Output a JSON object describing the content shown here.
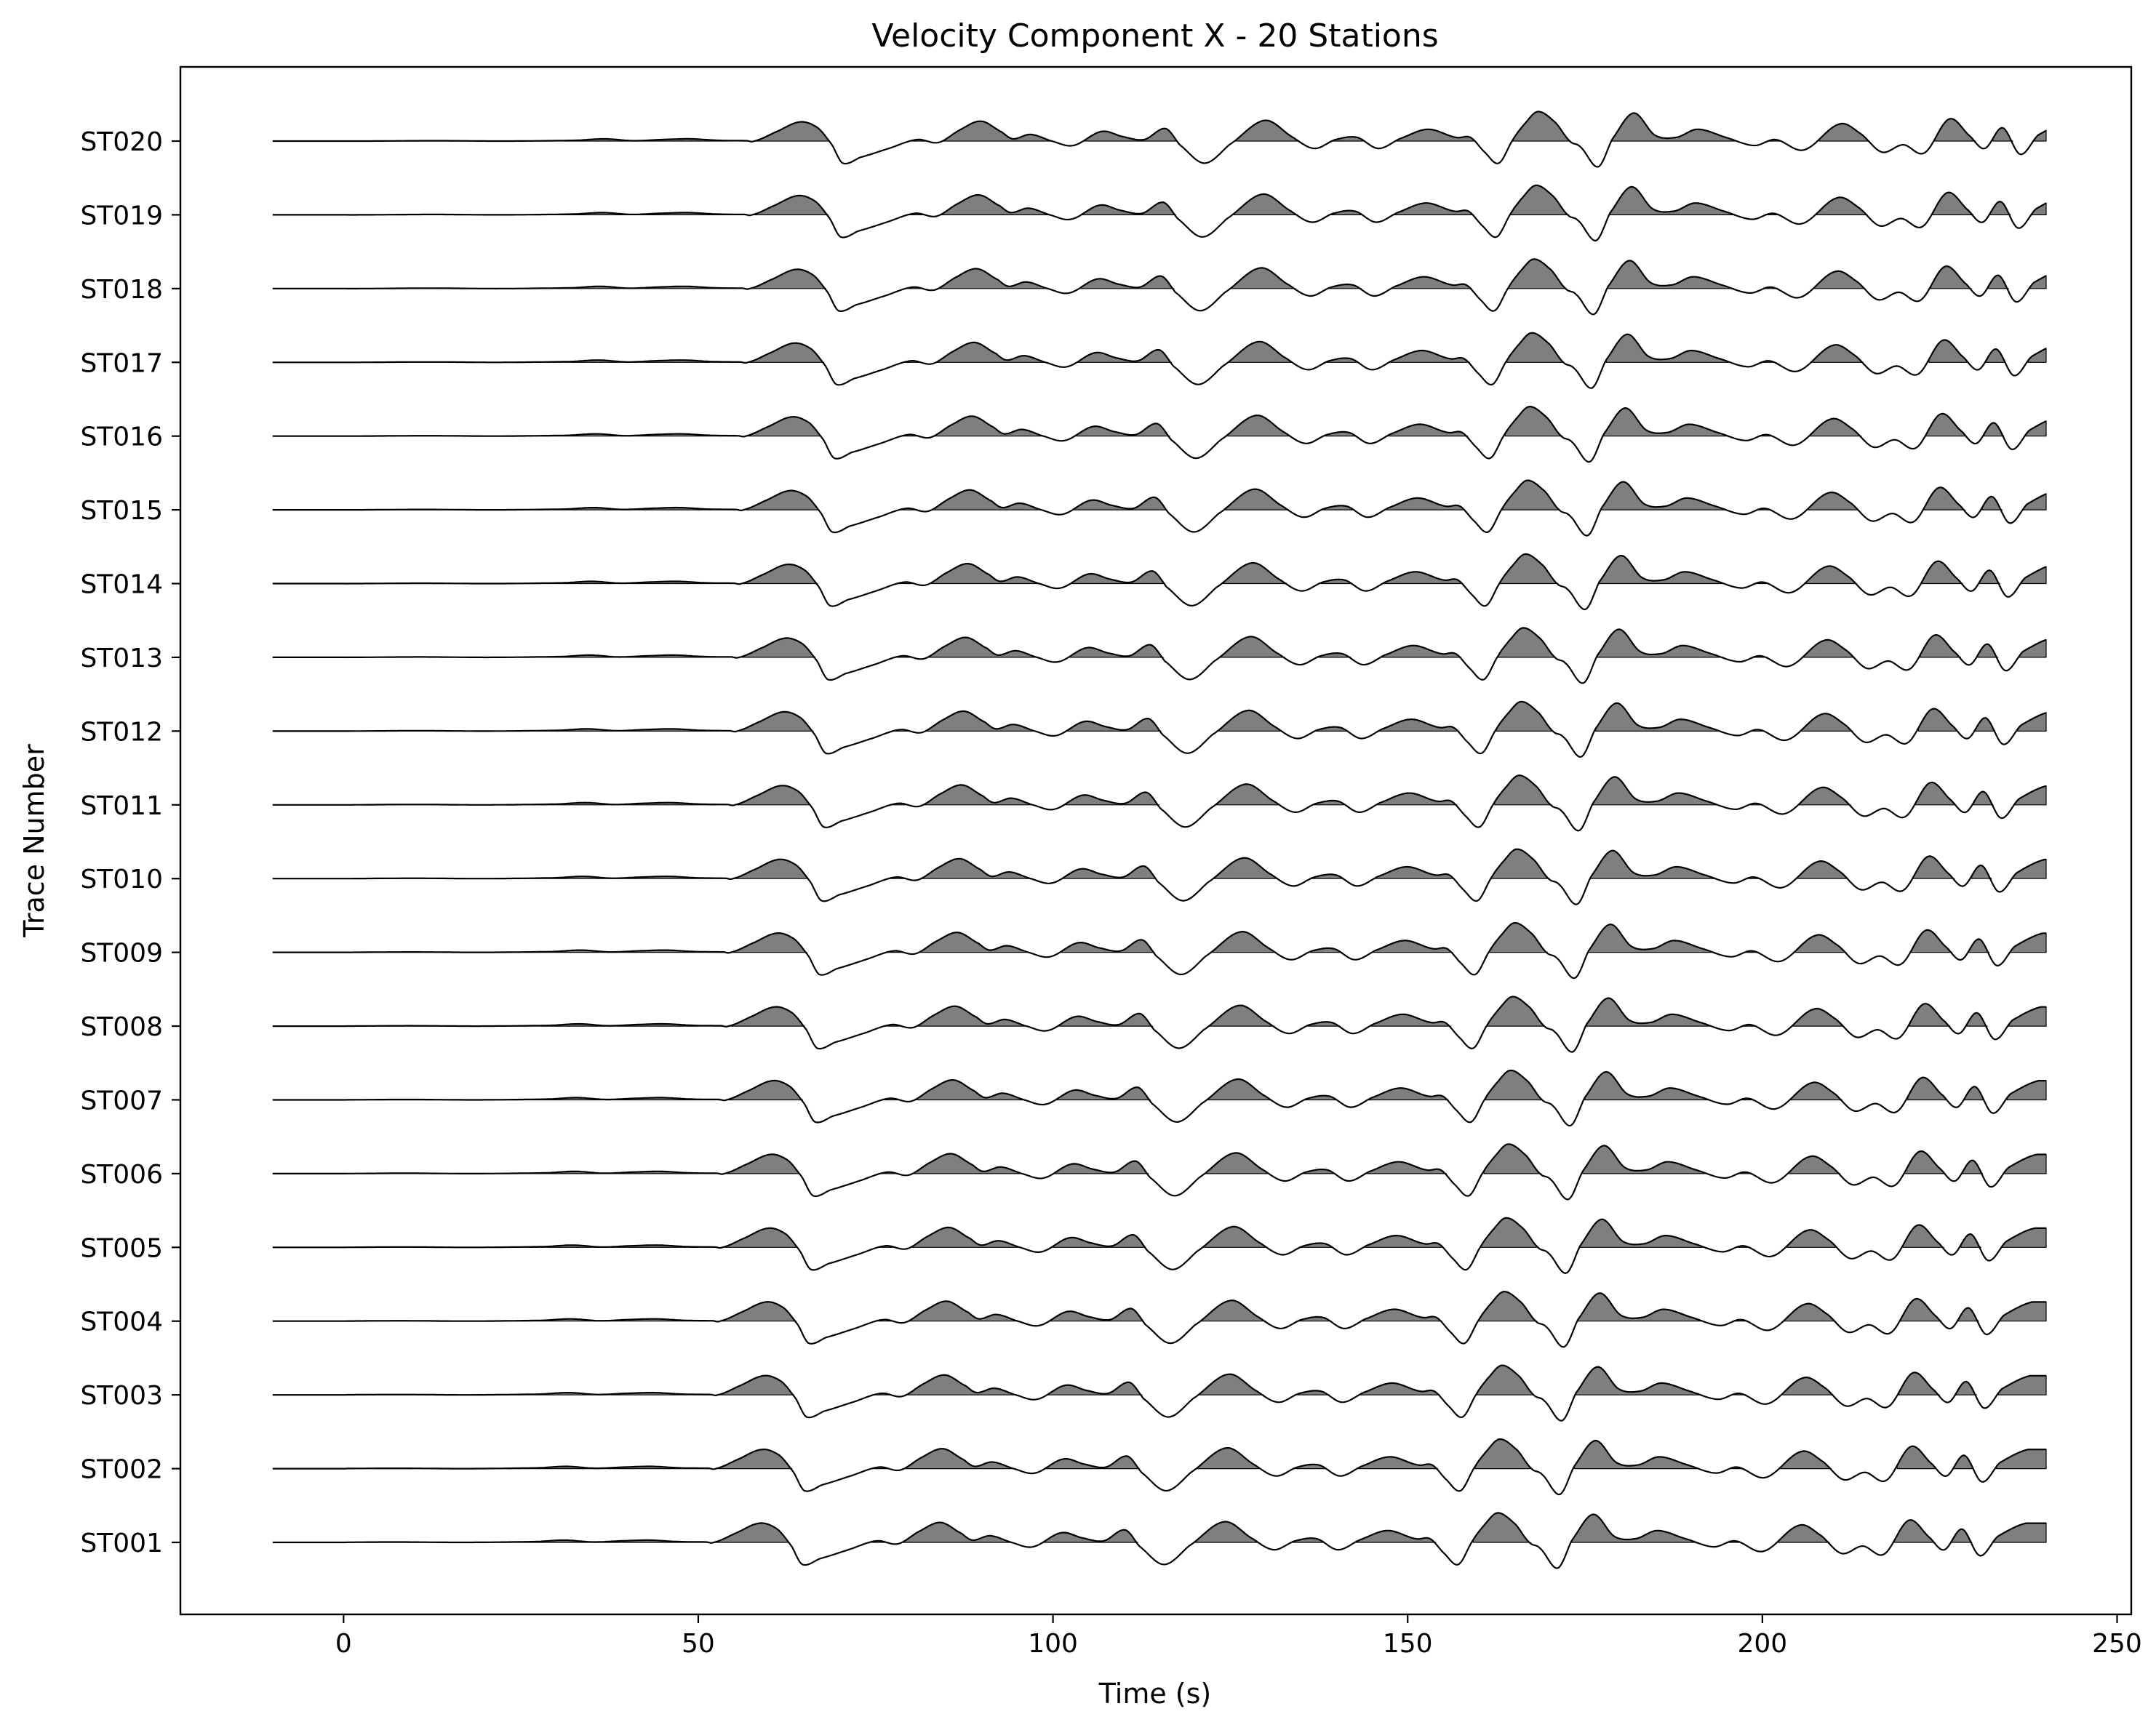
{
  "chart_data": {
    "type": "line",
    "title": "Velocity Component X - 20 Stations",
    "xlabel": "Time (s)",
    "ylabel": "Trace Number",
    "xlim": [
      -23,
      252
    ],
    "x_ticks": [
      0,
      50,
      100,
      150,
      200,
      250
    ],
    "x_tick_labels": [
      "0",
      "50",
      "100",
      "150",
      "200",
      "250"
    ],
    "trace_labels": [
      "ST001",
      "ST002",
      "ST003",
      "ST004",
      "ST005",
      "ST006",
      "ST007",
      "ST008",
      "ST009",
      "ST010",
      "ST011",
      "ST012",
      "ST013",
      "ST014",
      "ST015",
      "ST016",
      "ST017",
      "ST018",
      "ST019",
      "ST020"
    ],
    "grid": false,
    "legend": "none",
    "fill_positive": true,
    "fill_color": "#808080",
    "line_color": "#000000",
    "series_shape": {
      "description_units": "time in seconds, amplitude in trace spacing units (1 = distance between traces)",
      "x": [
        -10,
        -3.5,
        0,
        10,
        20,
        30,
        34,
        38,
        42,
        46,
        50,
        54,
        55,
        58,
        61.5,
        64,
        66,
        67.5,
        70,
        74,
        78,
        81,
        84,
        87,
        90,
        91.5,
        94,
        97,
        100,
        104,
        107,
        110,
        113,
        115,
        118.5,
        122,
        127,
        131,
        134,
        137,
        140,
        143,
        146,
        150,
        154,
        156,
        158,
        160,
        162,
        163.5,
        165.5,
        168,
        170,
        171.5,
        174,
        176,
        179,
        182,
        185,
        188,
        192,
        196,
        199,
        203,
        208,
        211,
        214,
        217,
        220,
        223.5,
        226.5,
        228.5,
        231,
        233.5,
        236,
        240
      ],
      "y": [
        0,
        0,
        0,
        0.005,
        0,
        0.01,
        0.03,
        0.005,
        0.02,
        0.03,
        0.01,
        0.005,
        0,
        0.12,
        0.26,
        0.18,
        -0.05,
        -0.3,
        -0.22,
        -0.1,
        0.02,
        -0.02,
        0.15,
        0.27,
        0.12,
        0.03,
        0.09,
        0.0,
        -0.06,
        0.13,
        0.06,
        0.02,
        0.17,
        -0.05,
        -0.3,
        -0.05,
        0.28,
        0.05,
        -0.1,
        0.02,
        0.05,
        -0.1,
        0.03,
        0.16,
        0.05,
        0.05,
        -0.15,
        -0.3,
        0.02,
        0.22,
        0.4,
        0.25,
        0.0,
        -0.08,
        -0.35,
        0.03,
        0.38,
        0.08,
        0.05,
        0.16,
        0.05,
        -0.06,
        0.02,
        -0.12,
        0.23,
        0.1,
        -0.15,
        -0.05,
        -0.16,
        0.3,
        0.06,
        -0.1,
        0.18,
        -0.18,
        0.08,
        0.26
      ]
    },
    "station_variation": "traces are nearly identical with a small time shift (about 0.3 s per station)"
  }
}
